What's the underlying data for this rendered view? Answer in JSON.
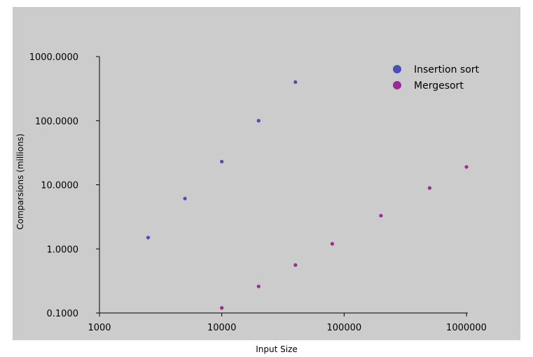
{
  "chart_data": {
    "type": "scatter",
    "title": "",
    "xlabel": "Input Size",
    "ylabel": "Comparsions (millions)",
    "x_scale": "log",
    "y_scale": "log",
    "xlim": [
      1000,
      1000000
    ],
    "ylim": [
      0.1,
      1000
    ],
    "x_ticks": [
      1000,
      10000,
      100000,
      1000000
    ],
    "x_tick_labels": [
      "1000",
      "10000",
      "100000",
      "1000000"
    ],
    "y_ticks": [
      0.1,
      1,
      10,
      100,
      1000
    ],
    "y_tick_labels": [
      "0.1000",
      "1.0000",
      "10.0000",
      "100.0000",
      "1000.0000"
    ],
    "grid": false,
    "legend_position": "top-right",
    "series": [
      {
        "name": "Insertion sort",
        "color": "#4a4fb8",
        "points": [
          {
            "x": 2500,
            "y": 1.5
          },
          {
            "x": 5000,
            "y": 6.1
          },
          {
            "x": 10000,
            "y": 23
          },
          {
            "x": 20000,
            "y": 100
          },
          {
            "x": 40000,
            "y": 400
          }
        ]
      },
      {
        "name": "Mergesort",
        "color": "#9b2a96",
        "points": [
          {
            "x": 10000,
            "y": 0.12
          },
          {
            "x": 20000,
            "y": 0.26
          },
          {
            "x": 40000,
            "y": 0.56
          },
          {
            "x": 80000,
            "y": 1.2
          },
          {
            "x": 200000,
            "y": 3.3
          },
          {
            "x": 500000,
            "y": 8.9
          },
          {
            "x": 1000000,
            "y": 19
          }
        ]
      }
    ]
  }
}
